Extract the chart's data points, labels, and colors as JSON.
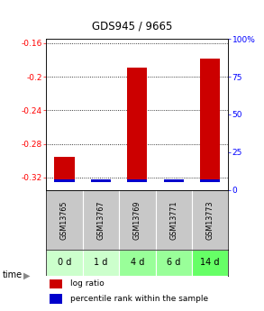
{
  "title": "GDS945 / 9665",
  "samples": [
    "GSM13765",
    "GSM13767",
    "GSM13769",
    "GSM13771",
    "GSM13773"
  ],
  "time_labels": [
    "0 d",
    "1 d",
    "4 d",
    "6 d",
    "14 d"
  ],
  "log_ratios": [
    -0.295,
    -0.322,
    -0.189,
    -0.322,
    -0.178
  ],
  "percentile_ranks": [
    2.5,
    2.5,
    12.5,
    2.5,
    12.5
  ],
  "ylim_left": [
    -0.335,
    -0.155
  ],
  "ylim_right": [
    0,
    100
  ],
  "yticks_left": [
    -0.32,
    -0.28,
    -0.24,
    -0.2,
    -0.16
  ],
  "yticks_right": [
    0,
    25,
    50,
    75,
    100
  ],
  "ytick_labels_left": [
    "-0.32",
    "-0.28",
    "-0.24",
    "-0.2",
    "-0.16"
  ],
  "ytick_labels_right": [
    "0",
    "25",
    "50",
    "75",
    "100%"
  ],
  "bar_color_red": "#cc0000",
  "bar_color_blue": "#0000cc",
  "time_bg_colors": [
    "#ccffcc",
    "#ccffcc",
    "#99ff99",
    "#99ff99",
    "#66ff66"
  ],
  "sample_bg_color": "#c8c8c8",
  "plot_bg_color": "#ffffff",
  "bar_width": 0.55,
  "baseline": -0.325
}
